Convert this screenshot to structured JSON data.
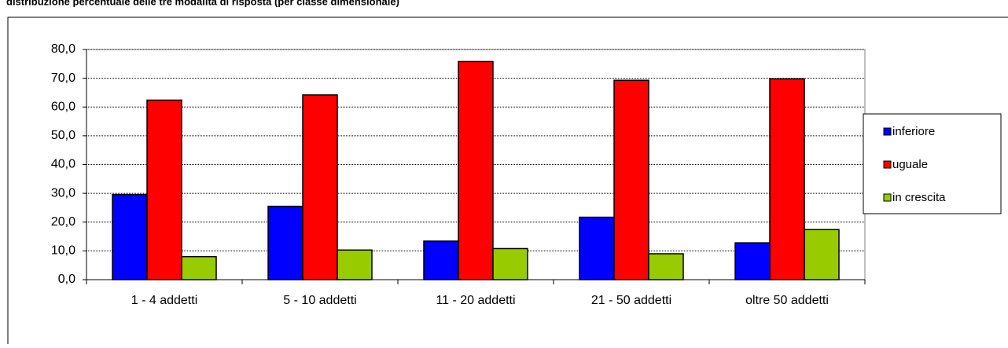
{
  "chart_data": {
    "type": "bar",
    "title": "distribuzione percentuale delle tre modalità di risposta (per classe dimensionale)",
    "categories": [
      "1 - 4 addetti",
      "5 - 10 addetti",
      "11 - 20 addetti",
      "21 - 50 addetti",
      "oltre 50 addetti"
    ],
    "series": [
      {
        "name": "inferiore",
        "color": "#0000ff",
        "values": [
          29.6,
          25.5,
          13.4,
          21.7,
          12.8
        ]
      },
      {
        "name": "uguale",
        "color": "#ff0000",
        "values": [
          62.4,
          64.2,
          75.8,
          69.3,
          69.8
        ]
      },
      {
        "name": "in crescita",
        "color": "#99cc00",
        "values": [
          8.0,
          10.3,
          10.8,
          9.0,
          17.4
        ]
      }
    ],
    "ylim": [
      0,
      80
    ],
    "yticks": [
      {
        "value": 0,
        "label": "0,0"
      },
      {
        "value": 10,
        "label": "10,0"
      },
      {
        "value": 20,
        "label": "20,0"
      },
      {
        "value": 30,
        "label": "30,0"
      },
      {
        "value": 40,
        "label": "40,0"
      },
      {
        "value": 50,
        "label": "50,0"
      },
      {
        "value": 60,
        "label": "60,0"
      },
      {
        "value": 70,
        "label": "70,0"
      },
      {
        "value": 80,
        "label": "80,0"
      }
    ],
    "grid": true,
    "legend": "right"
  }
}
